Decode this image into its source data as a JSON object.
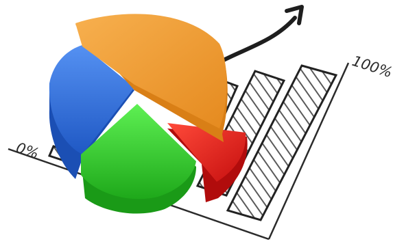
{
  "illustration": {
    "axis_labels": {
      "min": "0%",
      "max": "100%"
    },
    "colors": {
      "orange": "#f39a2e",
      "blue": "#2f6fe0",
      "green": "#34d12c",
      "red": "#ec1f1f",
      "line": "#2b2b2b",
      "hatch": "#555555"
    }
  }
}
